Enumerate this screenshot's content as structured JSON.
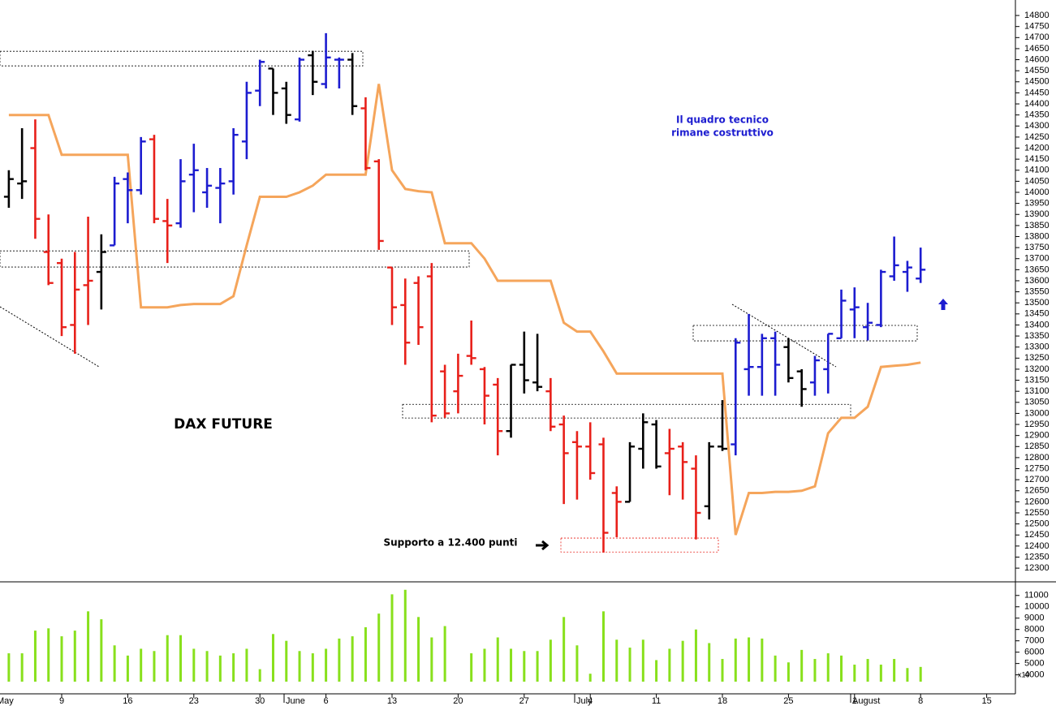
{
  "chart_data": {
    "type": "ohlc",
    "title": "DAX FUTURE",
    "annotations": [
      "Il quadro tecnico",
      "rimane costruttivo",
      "Supporto a 12.400 punti"
    ],
    "categories": [
      null,
      null,
      null,
      null,
      "9",
      null,
      null,
      null,
      null,
      "16",
      null,
      null,
      null,
      null,
      "23",
      null,
      null,
      null,
      null,
      "30",
      null,
      null,
      null,
      null,
      "6",
      null,
      null,
      null,
      null,
      "13",
      null,
      null,
      null,
      null,
      "20",
      null,
      null,
      null,
      null,
      "27",
      null,
      null,
      null,
      null,
      "4",
      null,
      null,
      null,
      null,
      "11",
      null,
      null,
      null,
      null,
      "18",
      null,
      null,
      null,
      null,
      "25",
      null,
      null,
      null,
      null,
      "1",
      null,
      null,
      null,
      null,
      "8",
      null,
      null,
      null,
      null,
      "15"
    ],
    "month_labels": [
      "May",
      "June",
      "July",
      "August"
    ],
    "open": [
      13980,
      14040,
      14200,
      13730,
      13680,
      13400,
      13580,
      13640,
      13760,
      14060,
      14010,
      14240,
      13870,
      13860,
      14080,
      14000,
      14020,
      14050,
      14230,
      14460,
      14560,
      14470,
      14330,
      14620,
      14490,
      14600,
      14600,
      14380,
      14140,
      13660,
      13490,
      13590,
      13620,
      13190,
      13100,
      13260,
      13200,
      13130,
      12920,
      13220,
      13140,
      13100,
      12950,
      12870,
      12850,
      12860,
      12640,
      12600,
      12840,
      12950,
      12820,
      12850,
      12750,
      12580,
      12850,
      12860,
      13200,
      13210,
      13340,
      13300,
      13190,
      13140,
      13200,
      13340,
      13470,
      13390,
      13400,
      13620,
      13640,
      13610,
      null,
      null,
      null,
      null,
      null
    ],
    "high": [
      14100,
      14290,
      14330,
      13900,
      13700,
      13730,
      13890,
      13810,
      14070,
      14090,
      14250,
      14260,
      13970,
      14150,
      14220,
      14110,
      14110,
      14290,
      14500,
      14600,
      14560,
      14500,
      14610,
      14640,
      14720,
      14610,
      14630,
      14430,
      14150,
      13660,
      13610,
      13620,
      13680,
      13220,
      13270,
      13420,
      13210,
      13160,
      13220,
      13370,
      13360,
      13160,
      12990,
      12920,
      12960,
      12890,
      12670,
      12870,
      13000,
      12970,
      12930,
      12870,
      12810,
      12870,
      13060,
      13340,
      13450,
      13360,
      13370,
      13340,
      13200,
      13260,
      13360,
      13560,
      13570,
      13500,
      13650,
      13800,
      13690,
      13750,
      null,
      null,
      null,
      null,
      null
    ],
    "low": [
      13930,
      13970,
      13790,
      13580,
      13350,
      13270,
      13400,
      13470,
      13760,
      13860,
      13990,
      13860,
      13680,
      13840,
      13910,
      13930,
      13860,
      13990,
      14150,
      14390,
      14350,
      14310,
      14320,
      14440,
      14470,
      14470,
      14350,
      14100,
      13740,
      13400,
      13220,
      13310,
      12960,
      12980,
      13000,
      13220,
      12950,
      12810,
      12890,
      13090,
      13100,
      12920,
      12590,
      12610,
      12700,
      12370,
      12440,
      12600,
      12750,
      12750,
      12630,
      12610,
      12430,
      12520,
      12830,
      12810,
      13080,
      13080,
      13080,
      13140,
      13030,
      13080,
      13090,
      13340,
      13340,
      13330,
      13390,
      13600,
      13550,
      13590,
      null,
      null,
      null,
      null,
      null
    ],
    "close": [
      14060,
      14050,
      13880,
      13590,
      13390,
      13560,
      13600,
      13730,
      14040,
      14010,
      14230,
      13880,
      13850,
      14050,
      14100,
      14030,
      14040,
      14260,
      14450,
      14590,
      14450,
      14350,
      14600,
      14500,
      14610,
      14600,
      14390,
      14110,
      13780,
      13480,
      13320,
      13390,
      12990,
      13000,
      13170,
      13250,
      13080,
      12920,
      13220,
      13150,
      13120,
      12940,
      12820,
      12850,
      12730,
      12460,
      12600,
      12850,
      12960,
      12760,
      12840,
      12780,
      12550,
      12850,
      12840,
      13320,
      13210,
      13340,
      13220,
      13160,
      13110,
      13240,
      13360,
      13510,
      13480,
      13410,
      13640,
      13670,
      13660,
      13650,
      null,
      null,
      null,
      null,
      null
    ],
    "colors": [
      "#000000",
      "#000000",
      "#e8201a",
      "#e8201a",
      "#e8201a",
      "#e8201a",
      "#e8201a",
      "#000000",
      "#1c1cd0",
      "#1c1cd0",
      "#1c1cd0",
      "#e8201a",
      "#e8201a",
      "#1c1cd0",
      "#1c1cd0",
      "#1c1cd0",
      "#1c1cd0",
      "#1c1cd0",
      "#1c1cd0",
      "#1c1cd0",
      "#000000",
      "#000000",
      "#1c1cd0",
      "#000000",
      "#1c1cd0",
      "#1c1cd0",
      "#000000",
      "#e8201a",
      "#e8201a",
      "#e8201a",
      "#e8201a",
      "#e8201a",
      "#e8201a",
      "#e8201a",
      "#e8201a",
      "#e8201a",
      "#e8201a",
      "#e8201a",
      "#000000",
      "#000000",
      "#000000",
      "#e8201a",
      "#e8201a",
      "#e8201a",
      "#e8201a",
      "#e8201a",
      "#e8201a",
      "#000000",
      "#000000",
      "#000000",
      "#e8201a",
      "#e8201a",
      "#e8201a",
      "#000000",
      "#000000",
      "#1c1cd0",
      "#1c1cd0",
      "#1c1cd0",
      "#1c1cd0",
      "#000000",
      "#000000",
      "#1c1cd0",
      "#1c1cd0",
      "#1c1cd0",
      "#1c1cd0",
      "#1c1cd0",
      "#1c1cd0",
      "#1c1cd0",
      "#1c1cd0",
      "#1c1cd0",
      null,
      null,
      null,
      null,
      null
    ],
    "line": {
      "color": "#f5a55b",
      "values": [
        14350,
        14350,
        14350,
        14350,
        14170,
        14170,
        14170,
        14170,
        14170,
        14170,
        13480,
        13480,
        13480,
        13490,
        13495,
        13495,
        13495,
        13530,
        13760,
        13980,
        13980,
        13980,
        14000,
        14030,
        14080,
        14080,
        14080,
        14080,
        14490,
        14100,
        14015,
        14005,
        14000,
        13770,
        13770,
        13770,
        13700,
        13600,
        13600,
        13600,
        13600,
        13600,
        13410,
        13370,
        13370,
        13280,
        13180,
        13180,
        13180,
        13180,
        13180,
        13180,
        13180,
        13180,
        13180,
        12450,
        12640,
        12640,
        12645,
        12645,
        12650,
        12670,
        12910,
        12980,
        12980,
        13030,
        13210,
        13215,
        13220,
        13230,
        null,
        null,
        null,
        null,
        null
      ]
    },
    "zones": [
      {
        "low": 14572,
        "high": 14638,
        "color": "#000000"
      },
      {
        "low": 13662,
        "high": 13735,
        "color": "#000000"
      },
      {
        "low": 12979,
        "high": 13041,
        "color": "#000000"
      },
      {
        "low": 12373,
        "high": 12436,
        "color": "#e8201a"
      },
      {
        "low": 13328,
        "high": 13398,
        "color": "#000000"
      }
    ],
    "ylim": [
      12238,
      14870
    ],
    "yticks": [
      12300,
      12350,
      12400,
      12450,
      12500,
      12550,
      12600,
      12650,
      12700,
      12750,
      12800,
      12850,
      12900,
      12950,
      13000,
      13050,
      13100,
      13150,
      13200,
      13250,
      13300,
      13350,
      13400,
      13450,
      13500,
      13550,
      13600,
      13650,
      13700,
      13750,
      13800,
      13850,
      13900,
      13950,
      14000,
      14050,
      14100,
      14150,
      14200,
      14250,
      14300,
      14350,
      14400,
      14450,
      14500,
      14550,
      14600,
      14650,
      14700,
      14750,
      14800
    ],
    "volume": {
      "type": "bar",
      "color": "#88e01c",
      "unit": "x10",
      "values": [
        5900,
        5900,
        7900,
        8100,
        7400,
        7900,
        9600,
        8900,
        6600,
        5700,
        6300,
        6100,
        7500,
        7500,
        6300,
        6100,
        5700,
        5900,
        6300,
        4500,
        7600,
        7000,
        6100,
        5900,
        6300,
        7200,
        7400,
        8200,
        9400,
        11100,
        11500,
        9100,
        7300,
        8300,
        null,
        5900,
        6300,
        7300,
        6300,
        6100,
        6100,
        7100,
        9100,
        6600,
        4100,
        9600,
        7100,
        6400,
        7100,
        5300,
        6300,
        7000,
        8000,
        6800,
        5400,
        7200,
        7300,
        7200,
        5700,
        5100,
        6200,
        5400,
        5900,
        5700,
        4900,
        5400,
        4900,
        5400,
        4600,
        4700,
        null,
        null,
        null,
        null,
        null
      ],
      "ylim": [
        3400,
        12200
      ],
      "yticks": [
        4000,
        5000,
        6000,
        7000,
        8000,
        9000,
        10000,
        11000
      ]
    }
  }
}
